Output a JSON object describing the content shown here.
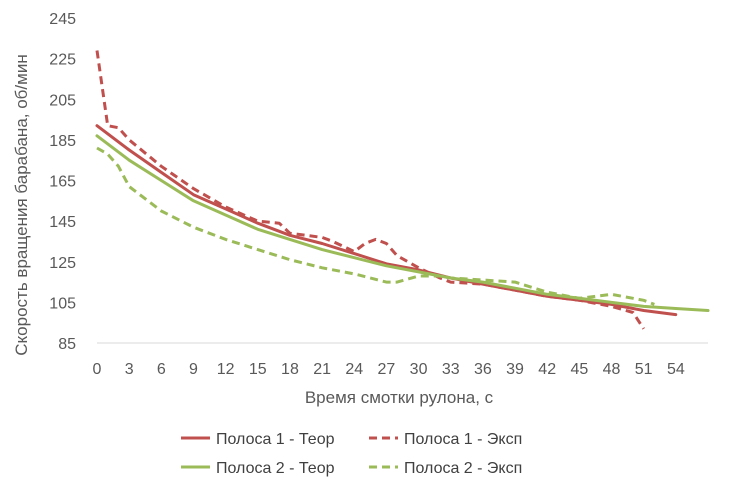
{
  "chart_data": {
    "type": "line",
    "title": "",
    "xlabel": "Время смотки рулона, с",
    "ylabel": "Скорость вращения барабана, об/мин",
    "xlim": [
      0,
      57
    ],
    "ylim": [
      85,
      245
    ],
    "x_ticks": [
      0,
      3,
      6,
      9,
      12,
      15,
      18,
      21,
      24,
      27,
      30,
      33,
      36,
      39,
      42,
      45,
      48,
      51,
      54
    ],
    "y_ticks": [
      85,
      105,
      125,
      145,
      165,
      185,
      205,
      225,
      245
    ],
    "grid": false,
    "legend_position": "bottom",
    "series": [
      {
        "name": "Полоса 1 - Теор",
        "color": "#c0504d",
        "dash": "solid",
        "points": [
          [
            0,
            192
          ],
          [
            3,
            180
          ],
          [
            6,
            169
          ],
          [
            9,
            158
          ],
          [
            12,
            151
          ],
          [
            15,
            144
          ],
          [
            18,
            138
          ],
          [
            21,
            134
          ],
          [
            24,
            129
          ],
          [
            27,
            124
          ],
          [
            30,
            121
          ],
          [
            33,
            117
          ],
          [
            36,
            114
          ],
          [
            39,
            111
          ],
          [
            42,
            108
          ],
          [
            45,
            106
          ],
          [
            48,
            104
          ],
          [
            51,
            101
          ],
          [
            54,
            99
          ]
        ]
      },
      {
        "name": "Полоса 1 - Эксп",
        "color": "#c0504d",
        "dash": "dashed",
        "points": [
          [
            0,
            229
          ],
          [
            1,
            192
          ],
          [
            2,
            191
          ],
          [
            3,
            185
          ],
          [
            6,
            172
          ],
          [
            9,
            161
          ],
          [
            12,
            152
          ],
          [
            15,
            145
          ],
          [
            17,
            144
          ],
          [
            18,
            139
          ],
          [
            21,
            137
          ],
          [
            22,
            135
          ],
          [
            24,
            130
          ],
          [
            25,
            134
          ],
          [
            26,
            136
          ],
          [
            27,
            134
          ],
          [
            28,
            128
          ],
          [
            30,
            122
          ],
          [
            32,
            117
          ],
          [
            33,
            115
          ],
          [
            36,
            114
          ],
          [
            39,
            111
          ],
          [
            42,
            108
          ],
          [
            45,
            106
          ],
          [
            48,
            103
          ],
          [
            50,
            100
          ],
          [
            51,
            92
          ]
        ]
      },
      {
        "name": "Полоса 2 - Теор",
        "color": "#9bbb59",
        "dash": "solid",
        "points": [
          [
            0,
            187
          ],
          [
            3,
            175
          ],
          [
            6,
            165
          ],
          [
            9,
            155
          ],
          [
            12,
            148
          ],
          [
            15,
            141
          ],
          [
            18,
            136
          ],
          [
            21,
            131
          ],
          [
            24,
            127
          ],
          [
            27,
            123
          ],
          [
            30,
            120
          ],
          [
            33,
            117
          ],
          [
            36,
            115
          ],
          [
            39,
            112
          ],
          [
            42,
            109
          ],
          [
            45,
            107
          ],
          [
            48,
            105
          ],
          [
            51,
            103
          ],
          [
            54,
            102
          ],
          [
            57,
            101
          ]
        ]
      },
      {
        "name": "Полоса 2 - Эксп",
        "color": "#9bbb59",
        "dash": "dashed",
        "points": [
          [
            0,
            181
          ],
          [
            1,
            178
          ],
          [
            2,
            172
          ],
          [
            3,
            162
          ],
          [
            6,
            150
          ],
          [
            9,
            142
          ],
          [
            12,
            136
          ],
          [
            15,
            131
          ],
          [
            18,
            126
          ],
          [
            21,
            122
          ],
          [
            24,
            119
          ],
          [
            27,
            115
          ],
          [
            28,
            115
          ],
          [
            30,
            118
          ],
          [
            32,
            118
          ],
          [
            33,
            117
          ],
          [
            36,
            116
          ],
          [
            39,
            115
          ],
          [
            42,
            110
          ],
          [
            45,
            107
          ],
          [
            48,
            109
          ],
          [
            50,
            107
          ],
          [
            51,
            106
          ],
          [
            52,
            104
          ]
        ]
      }
    ]
  }
}
